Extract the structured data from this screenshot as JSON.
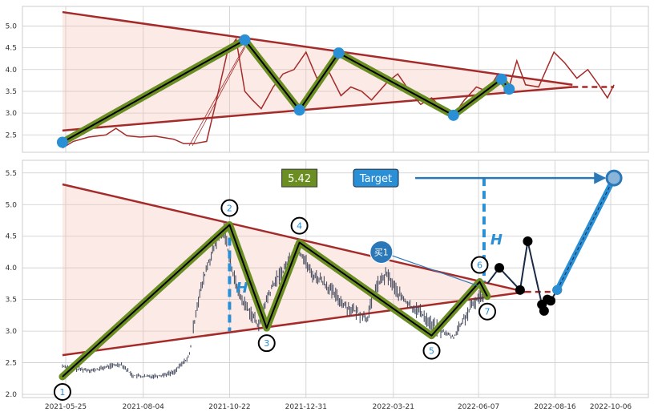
{
  "colors": {
    "line": "#a52a2a",
    "triangle_fill": "#f4c2b5",
    "wave_outer": "#6b8e23",
    "wave_inner": "#000000",
    "point": "#2b8fd6",
    "candle": "#3a4156",
    "dark_point": "#000000",
    "grid": "#cccccc"
  },
  "chart_data": [
    {
      "type": "line",
      "panel": "top",
      "ylim": [
        2.1,
        5.45
      ],
      "y_ticks": [
        "2.5",
        "3.0",
        "3.5",
        "4.0",
        "4.5",
        "5.0"
      ],
      "grid": true,
      "series": [
        {
          "x": [
            "2021-05-22",
            "2021-06-01",
            "2021-06-15",
            "2021-07-01",
            "2021-07-10",
            "2021-07-20",
            "2021-08-01",
            "2021-08-15",
            "2021-09-01",
            "2021-09-10",
            "2021-09-20",
            "2021-10-01",
            "2021-10-10",
            "2021-10-20",
            "2021-10-28",
            "2021-11-05",
            "2021-11-12",
            "2021-11-20",
            "2021-12-01",
            "2021-12-10",
            "2021-12-20",
            "2021-12-31",
            "2022-01-10",
            "2022-01-20",
            "2022-02-01",
            "2022-02-10",
            "2022-02-20",
            "2022-03-01",
            "2022-03-15",
            "2022-03-25",
            "2022-04-05",
            "2022-04-15",
            "2022-04-25",
            "2022-05-05",
            "2022-05-15",
            "2022-05-25",
            "2022-06-05",
            "2022-06-15",
            "2022-06-25",
            "2022-07-05",
            "2022-07-12",
            "2022-07-20",
            "2022-08-01",
            "2022-08-15",
            "2022-08-25",
            "2022-09-05",
            "2022-09-15",
            "2022-09-25",
            "2022-10-03",
            "2022-10-09"
          ],
          "values": [
            2.2,
            2.35,
            2.45,
            2.5,
            2.65,
            2.48,
            2.45,
            2.47,
            2.4,
            2.3,
            2.3,
            2.35,
            3.3,
            4.4,
            4.7,
            3.5,
            3.3,
            3.1,
            3.6,
            3.9,
            4.0,
            4.4,
            3.8,
            4.0,
            3.4,
            3.6,
            3.5,
            3.3,
            3.7,
            3.9,
            3.5,
            3.2,
            3.35,
            3.1,
            2.95,
            3.3,
            3.6,
            3.5,
            3.9,
            3.6,
            4.2,
            3.65,
            3.6,
            4.4,
            4.15,
            3.8,
            4.0,
            3.65,
            3.35,
            3.65
          ]
        }
      ]
    },
    {
      "type": "candlestick",
      "panel": "bottom",
      "ylim": [
        1.95,
        5.7
      ],
      "y_ticks": [
        "2.0",
        "2.5",
        "3.0",
        "3.5",
        "4.0",
        "4.5",
        "5.0",
        "5.5"
      ],
      "x_ticks": [
        "2021-05-25",
        "2021-08-04",
        "2021-10-22",
        "2021-12-31",
        "2022-03-21",
        "2022-06-07",
        "2022-08-16",
        "2022-10-06"
      ],
      "grid": true,
      "series": [
        {
          "x": [
            "2021-05-22",
            "2021-06-05",
            "2021-06-20",
            "2021-07-05",
            "2021-07-15",
            "2021-07-25",
            "2021-08-05",
            "2021-08-20",
            "2021-09-01",
            "2021-09-15",
            "2021-09-22",
            "2021-10-01",
            "2021-10-10",
            "2021-10-17",
            "2021-10-25",
            "2021-11-02",
            "2021-11-10",
            "2021-11-17",
            "2021-11-25",
            "2021-12-03",
            "2021-12-12",
            "2021-12-20",
            "2021-12-28",
            "2022-01-05",
            "2022-01-15",
            "2022-01-25",
            "2022-02-05",
            "2022-02-15",
            "2022-02-25",
            "2022-03-05",
            "2022-03-15",
            "2022-03-25",
            "2022-04-05",
            "2022-04-15",
            "2022-04-25",
            "2022-05-05",
            "2022-05-15",
            "2022-05-25",
            "2022-06-05",
            "2022-06-12"
          ],
          "values": [
            2.45,
            2.4,
            2.38,
            2.45,
            2.48,
            2.3,
            2.28,
            2.3,
            2.35,
            2.6,
            3.4,
            4.0,
            4.4,
            4.6,
            3.9,
            3.5,
            3.3,
            3.1,
            3.5,
            3.8,
            4.0,
            4.3,
            4.2,
            3.9,
            3.8,
            3.6,
            3.4,
            3.3,
            3.2,
            3.7,
            3.9,
            3.6,
            3.4,
            3.3,
            3.1,
            3.0,
            2.9,
            3.2,
            3.5,
            3.6
          ]
        }
      ]
    }
  ],
  "overlay": {
    "top": {
      "triangle_upper": {
        "x": [
          "2021-05-22",
          "2022-09-01"
        ],
        "y": [
          5.32,
          3.65
        ]
      },
      "triangle_lower": {
        "x": [
          "2021-05-22",
          "2022-09-01"
        ],
        "y": [
          2.6,
          3.6
        ]
      },
      "projection": {
        "x": [
          "2022-09-01",
          "2022-10-09"
        ],
        "y": [
          3.6,
          3.6
        ]
      },
      "wave_points": {
        "x": [
          "2021-05-22",
          "2021-11-05",
          "2021-12-25",
          "2022-01-30",
          "2022-05-15",
          "2022-06-28",
          "2022-07-05"
        ],
        "y": [
          2.33,
          4.68,
          3.07,
          4.38,
          2.95,
          3.78,
          3.55
        ]
      },
      "thin_lines": {
        "x": [
          "2021-09-15",
          "2021-11-05",
          "2021-09-18",
          "2021-11-05"
        ],
        "y": [
          2.25,
          4.55,
          2.25,
          4.5
        ]
      }
    },
    "bottom": {
      "triangle_upper": {
        "x": [
          "2021-05-22",
          "2022-07-20"
        ],
        "y": [
          5.32,
          3.62
        ]
      },
      "triangle_lower": {
        "x": [
          "2021-05-22",
          "2022-07-20"
        ],
        "y": [
          2.62,
          3.62
        ]
      },
      "projection": {
        "x": [
          "2022-07-20",
          "2022-08-18"
        ],
        "y": [
          3.62,
          3.62
        ]
      },
      "wave_points": {
        "x": [
          "2021-05-22",
          "2021-10-22",
          "2021-11-25",
          "2021-12-25",
          "2022-04-25",
          "2022-06-08",
          "2022-06-15"
        ],
        "y": [
          2.28,
          4.68,
          3.05,
          4.4,
          2.93,
          3.78,
          3.55
        ]
      },
      "labels": [
        "1",
        "2",
        "3",
        "4",
        "5",
        "6",
        "7"
      ],
      "label_positions": [
        "below",
        "above",
        "below",
        "above",
        "below",
        "above",
        "below"
      ],
      "dark_path": {
        "x": [
          "2022-06-15",
          "2022-06-26",
          "2022-07-15",
          "2022-07-22",
          "2022-08-04",
          "2022-08-06",
          "2022-08-09",
          "2022-08-12",
          "2022-08-18"
        ],
        "y": [
          3.75,
          4.0,
          3.65,
          4.42,
          3.42,
          3.32,
          3.5,
          3.48,
          3.65
        ]
      },
      "target_path": {
        "x": [
          "2022-08-18",
          "2022-10-09"
        ],
        "y": [
          3.65,
          5.42
        ]
      },
      "h_markers": [
        {
          "label": "H",
          "x": "2021-10-22",
          "y_from": 4.68,
          "y_to": 3.0
        },
        {
          "label": "H",
          "x": "2022-06-12",
          "y_from": 5.42,
          "y_to": 3.78
        }
      ],
      "buy_marker": {
        "label": "买1",
        "x": "2022-03-10",
        "y": 4.25,
        "x_to": "2022-06-06",
        "y_to": 3.72
      },
      "target_value": {
        "text": "5.42",
        "x": "2021-12-25",
        "y": 5.42
      },
      "target_label": {
        "text": "Target",
        "x": "2022-03-05",
        "y": 5.42
      },
      "target_arrow": {
        "x": [
          "2022-04-10",
          "2022-10-08"
        ],
        "y": [
          5.42,
          5.42
        ]
      }
    }
  }
}
